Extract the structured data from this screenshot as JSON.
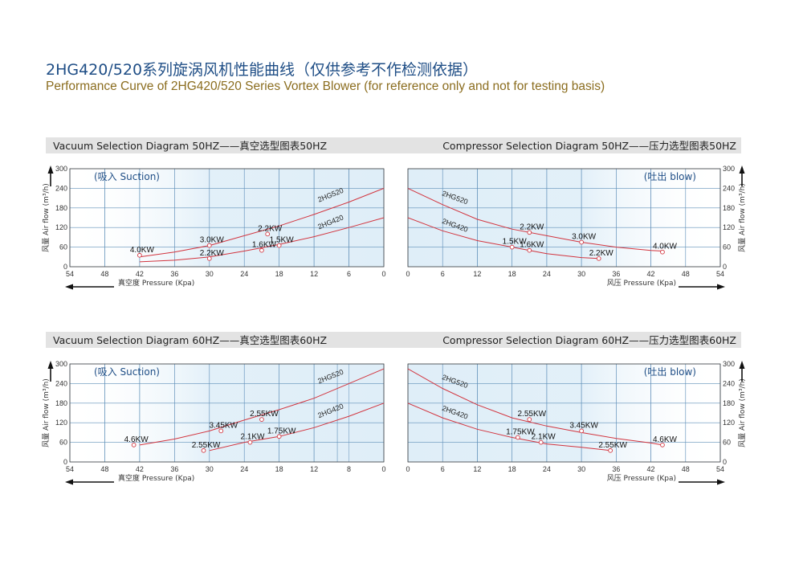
{
  "title_cn": "2HG420/520系列旋涡风机性能曲线（仅供参考不作检测依据）",
  "title_en": "Performance Curve of 2HG420/520 Series Vortex Blower (for reference only and not for testing basis)",
  "colors": {
    "curve": "#d2353f",
    "grid": "#5f8fb8",
    "shade": "#dfeef8",
    "title": "#1f4e86",
    "subtitle": "#8b6d1f",
    "header": "#e3e3e3"
  },
  "chart_data": [
    {
      "type": "line",
      "title": "Vacuum Selection Diagram 50HZ——真空选型图表50HZ",
      "corner_label": "(吸入 Suction)",
      "xlabel": "真空度 Pressure (Kpa)",
      "ylabel": "风量 Air flow (m³/h)",
      "x_reversed": true,
      "xlim": [
        0,
        54
      ],
      "ylim": [
        0,
        300
      ],
      "xticks": [
        54,
        48,
        42,
        36,
        30,
        24,
        18,
        12,
        6,
        0
      ],
      "yticks": [
        0,
        60,
        120,
        180,
        240,
        300
      ],
      "series": [
        {
          "name": "2HG520",
          "x": [
            0,
            6,
            12,
            18,
            24,
            30,
            36,
            42
          ],
          "y": [
            240,
            198,
            160,
            125,
            95,
            65,
            45,
            30
          ]
        },
        {
          "name": "2HG420",
          "x": [
            0,
            6,
            12,
            18,
            24,
            30,
            36,
            42
          ],
          "y": [
            150,
            120,
            92,
            68,
            48,
            30,
            20,
            15
          ]
        }
      ],
      "annotations": [
        {
          "text": "4.0KW",
          "x": 42,
          "y": 35
        },
        {
          "text": "3.0KW",
          "x": 30,
          "y": 65
        },
        {
          "text": "2.2KW",
          "x": 20,
          "y": 100
        },
        {
          "text": "2.2KW",
          "x": 30,
          "y": 25
        },
        {
          "text": "1.6KW",
          "x": 21,
          "y": 50
        },
        {
          "text": "1.5KW",
          "x": 18,
          "y": 65
        }
      ]
    },
    {
      "type": "line",
      "title": "Compressor Selection Diagram 50HZ——压力选型图表50HZ",
      "corner_label": "(吐出 blow)",
      "xlabel": "风压 Pressure (Kpa)",
      "ylabel": "风量 Air flow (m³/h)",
      "x_reversed": false,
      "xlim": [
        0,
        54
      ],
      "ylim": [
        0,
        300
      ],
      "xticks": [
        0,
        6,
        12,
        18,
        24,
        30,
        36,
        42,
        48,
        54
      ],
      "yticks": [
        0,
        60,
        120,
        180,
        240,
        300
      ],
      "series": [
        {
          "name": "2HG520",
          "x": [
            0,
            6,
            12,
            18,
            24,
            30,
            36,
            42,
            44
          ],
          "y": [
            240,
            190,
            145,
            115,
            95,
            75,
            60,
            50,
            48
          ]
        },
        {
          "name": "2HG420",
          "x": [
            0,
            6,
            12,
            18,
            24,
            30,
            33
          ],
          "y": [
            150,
            110,
            80,
            60,
            40,
            28,
            25
          ]
        }
      ],
      "annotations": [
        {
          "text": "2.2KW",
          "x": 21,
          "y": 105
        },
        {
          "text": "3.0KW",
          "x": 30,
          "y": 75
        },
        {
          "text": "4.0KW",
          "x": 44,
          "y": 45
        },
        {
          "text": "1.5KW",
          "x": 18,
          "y": 60
        },
        {
          "text": "1.6KW",
          "x": 21,
          "y": 50
        },
        {
          "text": "2.2KW",
          "x": 33,
          "y": 25
        }
      ]
    },
    {
      "type": "line",
      "title": "Vacuum Selection Diagram 60HZ——真空选型图表60HZ",
      "corner_label": "(吸入 Suction)",
      "xlabel": "真空度 Pressure (Kpa)",
      "ylabel": "风量 Air flow (m³/h)",
      "x_reversed": true,
      "xlim": [
        0,
        54
      ],
      "ylim": [
        0,
        300
      ],
      "xticks": [
        54,
        48,
        42,
        36,
        30,
        24,
        18,
        12,
        8,
        0
      ],
      "yticks": [
        0,
        60,
        120,
        180,
        240,
        300
      ],
      "series": [
        {
          "name": "2HG520",
          "x": [
            0,
            6,
            12,
            18,
            24,
            30,
            36,
            42
          ],
          "y": [
            285,
            240,
            195,
            160,
            128,
            95,
            70,
            52
          ]
        },
        {
          "name": "2HG420",
          "x": [
            0,
            6,
            12,
            18,
            24,
            30
          ],
          "y": [
            180,
            140,
            105,
            78,
            60,
            35
          ]
        }
      ],
      "annotations": [
        {
          "text": "4.6KW",
          "x": 43,
          "y": 52
        },
        {
          "text": "3.45KW",
          "x": 28,
          "y": 95
        },
        {
          "text": "2.55KW",
          "x": 21,
          "y": 130
        },
        {
          "text": "2.55KW",
          "x": 31,
          "y": 35
        },
        {
          "text": "2.1KW",
          "x": 23,
          "y": 60
        },
        {
          "text": "1.75KW",
          "x": 18,
          "y": 78
        }
      ]
    },
    {
      "type": "line",
      "title": "Compressor Selection Diagram 60HZ——压力选型图表60HZ",
      "corner_label": "(吐出 blow)",
      "xlabel": "风压 Pressure (Kpa)",
      "ylabel": "风量 Air flow (m³/h)",
      "x_reversed": false,
      "xlim": [
        0,
        54
      ],
      "ylim": [
        0,
        300
      ],
      "xticks": [
        0,
        6,
        12,
        18,
        24,
        30,
        36,
        42,
        48,
        54
      ],
      "yticks": [
        0,
        60,
        120,
        180,
        240,
        300
      ],
      "series": [
        {
          "name": "2HG520",
          "x": [
            0,
            6,
            12,
            18,
            24,
            30,
            36,
            42,
            44
          ],
          "y": [
            285,
            225,
            175,
            135,
            110,
            90,
            72,
            58,
            52
          ]
        },
        {
          "name": "2HG420",
          "x": [
            0,
            6,
            12,
            18,
            24,
            30,
            35
          ],
          "y": [
            180,
            135,
            100,
            75,
            55,
            45,
            35
          ]
        }
      ],
      "annotations": [
        {
          "text": "2.55KW",
          "x": 21,
          "y": 130
        },
        {
          "text": "3.45KW",
          "x": 30,
          "y": 95
        },
        {
          "text": "4.6KW",
          "x": 44,
          "y": 52
        },
        {
          "text": "1.75KW",
          "x": 19,
          "y": 75
        },
        {
          "text": "2.1KW",
          "x": 23,
          "y": 60
        },
        {
          "text": "2.55KW",
          "x": 35,
          "y": 35
        }
      ]
    }
  ]
}
